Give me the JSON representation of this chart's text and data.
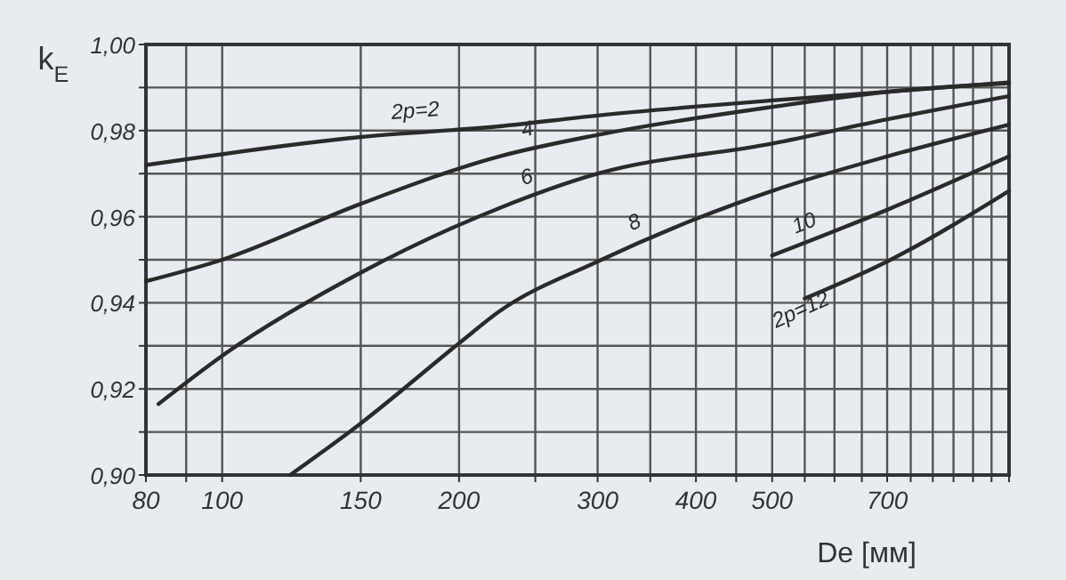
{
  "chart_data": {
    "type": "line",
    "xlabel": "De [мм]",
    "ylabel": "k$_{E}$",
    "log": "x",
    "grid": true,
    "line_style": "solid",
    "xlim": [
      80,
      1000
    ],
    "xticks": [
      80,
      {
        "value": 90,
        "label": null
      },
      100,
      150,
      200,
      {
        "value": 250,
        "label": null
      },
      300,
      {
        "value": 350,
        "label": null
      },
      400,
      {
        "value": 450,
        "label": null
      },
      500,
      {
        "value": 550,
        "label": null
      },
      {
        "value": 600,
        "label": null
      },
      {
        "value": 650,
        "label": null
      },
      700,
      {
        "value": 750,
        "label": null
      },
      {
        "value": 800,
        "label": null
      },
      {
        "value": 850,
        "label": null
      },
      {
        "value": 900,
        "label": null
      },
      {
        "value": 950,
        "label": null
      },
      {
        "value": 1000,
        "label": null
      }
    ],
    "ylim": [
      0.9,
      1.0
    ],
    "yticks": [
      {
        "value": 0.9,
        "label": "0,90"
      },
      {
        "value": 0.91,
        "label": null
      },
      {
        "value": 0.92,
        "label": "0,92"
      },
      {
        "value": 0.93,
        "label": null
      },
      {
        "value": 0.94,
        "label": "0,94"
      },
      {
        "value": 0.95,
        "label": null
      },
      {
        "value": 0.96,
        "label": "0,96"
      },
      {
        "value": 0.97,
        "label": null
      },
      {
        "value": 0.98,
        "label": "0,98"
      },
      {
        "value": 0.99,
        "label": null
      },
      {
        "value": 1.0,
        "label": "1,00"
      }
    ],
    "series": [
      {
        "name": "2p=2",
        "color": "#2a2a2a",
        "x": [
          80,
          150,
          225,
          300,
          500,
          700,
          1000
        ],
        "values": [
          0.972,
          0.9785,
          0.981,
          0.9835,
          0.987,
          0.989,
          0.9912
        ]
      },
      {
        "name": "4",
        "color": "#2a2a2a",
        "x": [
          80,
          100,
          150,
          225,
          300,
          500,
          700,
          1000
        ],
        "values": [
          0.945,
          0.95,
          0.963,
          0.974,
          0.979,
          0.9855,
          0.989,
          0.991
        ]
      },
      {
        "name": "6",
        "color": "#2a2a2a",
        "x": [
          83,
          100,
          150,
          225,
          300,
          500,
          700,
          1000
        ],
        "values": [
          0.9165,
          0.9277,
          0.947,
          0.962,
          0.97,
          0.977,
          0.9826,
          0.988
        ]
      },
      {
        "name": "8",
        "color": "#2a2a2a",
        "x": [
          122,
          150,
          200,
          225,
          300,
          400,
          500,
          700,
          1000
        ],
        "values": [
          0.9,
          0.912,
          0.9306,
          0.938,
          0.9496,
          0.9595,
          0.966,
          0.974,
          0.9814
        ]
      },
      {
        "name": "10",
        "color": "#2a2a2a",
        "x": [
          500,
          700,
          1000
        ],
        "values": [
          0.951,
          0.9616,
          0.974
        ]
      },
      {
        "name": "2p=12",
        "color": "#2a2a2a",
        "x": [
          550,
          700,
          1000
        ],
        "values": [
          0.941,
          0.9496,
          0.966
        ]
      }
    ]
  }
}
